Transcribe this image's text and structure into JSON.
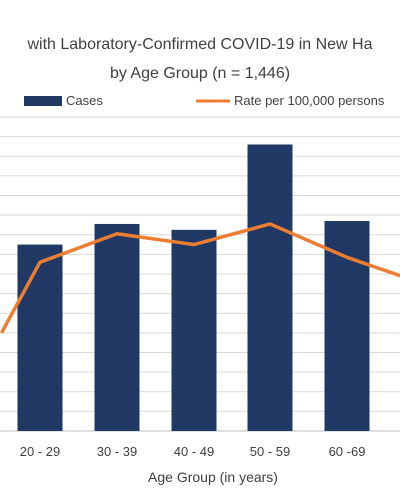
{
  "chart_data": {
    "type": "bar",
    "title_line1": "with Laboratory-Confirmed COVID-19 in New Ha",
    "title_line2": "by Age Group (n = 1,446)",
    "xlabel": "Age Group (in years)",
    "categories": [
      "20 - 29",
      "30 - 39",
      "40 - 49",
      "50 - 59",
      "60 -69"
    ],
    "series": [
      {
        "name": "Cases",
        "kind": "bar",
        "color": "#1f3864",
        "values": [
          190,
          211,
          205,
          292,
          214
        ]
      },
      {
        "name": "Rate per 100,000 persons",
        "kind": "line",
        "color": "#ed7d31",
        "values": [
          172,
          201,
          190,
          211,
          177
        ]
      }
    ],
    "line_edge_values": {
      "left": 100,
      "right": 158
    },
    "ylim": [
      0,
      320
    ],
    "grid": true,
    "legend_position": "top"
  }
}
